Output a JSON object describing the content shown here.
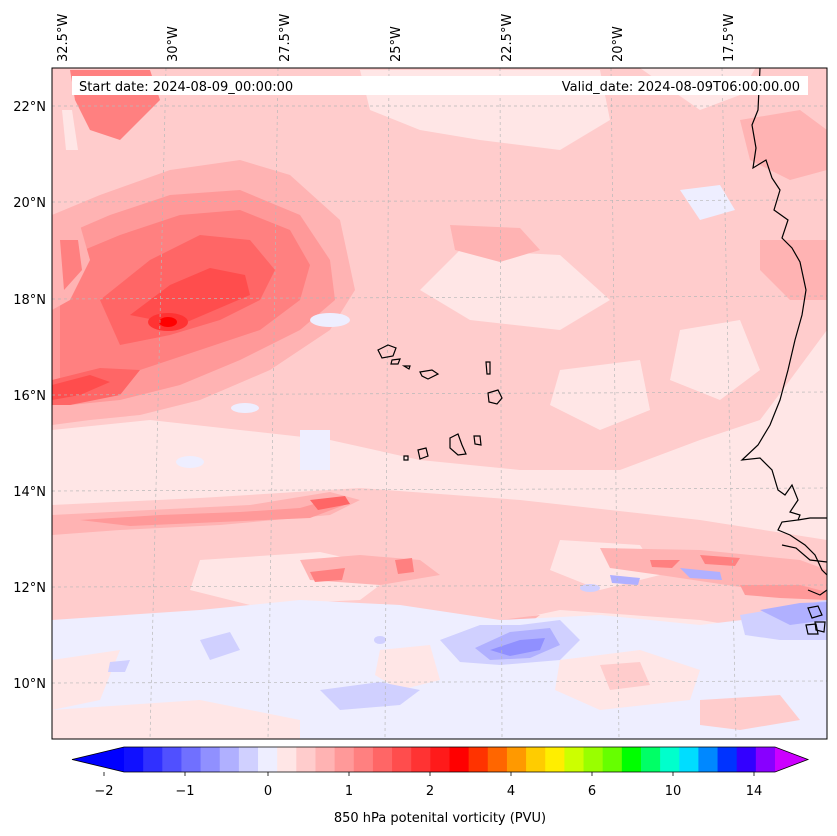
{
  "header": {
    "start_date": "Start date: 2024-08-09_00:00:00",
    "valid_date": "Valid_date: 2024-08-09T06:00:00.00"
  },
  "axes": {
    "longitude_labels": [
      "32.5°W",
      "30°W",
      "27.5°W",
      "25°W",
      "22.5°W",
      "20°W",
      "17.5°W"
    ],
    "latitude_labels": [
      "22°N",
      "20°N",
      "18°N",
      "16°N",
      "14°N",
      "12°N",
      "10°N"
    ],
    "longitude_values": [
      -32.5,
      -30,
      -27.5,
      -25,
      -22.5,
      -20,
      -17.5
    ],
    "latitude_values": [
      22,
      20,
      18,
      16,
      14,
      12,
      10
    ]
  },
  "colorbar": {
    "label": "850 hPa potenital vorticity (PVU)",
    "tick_labels": [
      "−2",
      "−1",
      "0",
      "1",
      "2",
      "4",
      "6",
      "10",
      "14"
    ],
    "tick_values": [
      -2,
      -1,
      0,
      1,
      2,
      4,
      6,
      10,
      14
    ],
    "level_colors": [
      "#1010ff",
      "#3030ff",
      "#5050ff",
      "#7070ff",
      "#9090ff",
      "#b0b0ff",
      "#d0d0ff",
      "#eeeeff",
      "#ffe6e6",
      "#ffcccc",
      "#ffb3b3",
      "#ff9999",
      "#ff8080",
      "#ff6666",
      "#ff4d4d",
      "#ff3333",
      "#ff1a1a",
      "#ff0000",
      "#ff3300",
      "#ff6600",
      "#ff9900",
      "#ffcc00",
      "#ffee00",
      "#ccff00",
      "#99ff00",
      "#66ff00",
      "#00ff00",
      "#00ff66",
      "#00ffcc",
      "#00ddff",
      "#0088ff",
      "#0033ff",
      "#3300ff",
      "#8800ff"
    ],
    "under_color": "#0000ff",
    "over_color": "#cc00ff"
  },
  "map_colors": {
    "background": "#ffe6e6",
    "coastline": "#000000",
    "gridline": "#b8b8b8"
  }
}
